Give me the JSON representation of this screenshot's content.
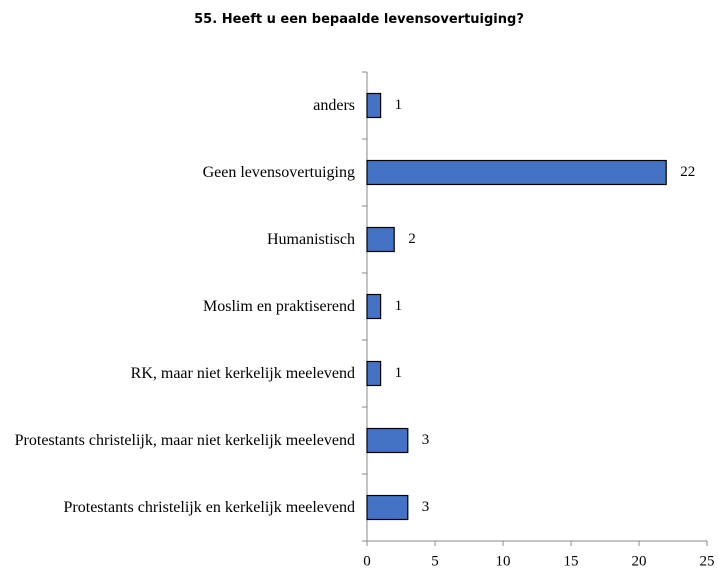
{
  "chart_data": {
    "type": "bar",
    "orientation": "horizontal",
    "title": "55. Heeft u een bepaalde levensovertuiging?",
    "categories": [
      "anders",
      "Geen levensovertuiging",
      "Humanistisch",
      "Moslim en praktiserend",
      "RK, maar niet kerkelijk meelevend",
      "Protestants christelijk, maar niet kerkelijk meelevend",
      "Protestants christelijk en kerkelijk meelevend"
    ],
    "values": [
      1,
      22,
      2,
      1,
      1,
      3,
      3
    ],
    "color": "#4472c4",
    "xlim": [
      0,
      25
    ],
    "xticks": [
      0,
      5,
      10,
      15,
      20,
      25
    ],
    "grid": false
  }
}
